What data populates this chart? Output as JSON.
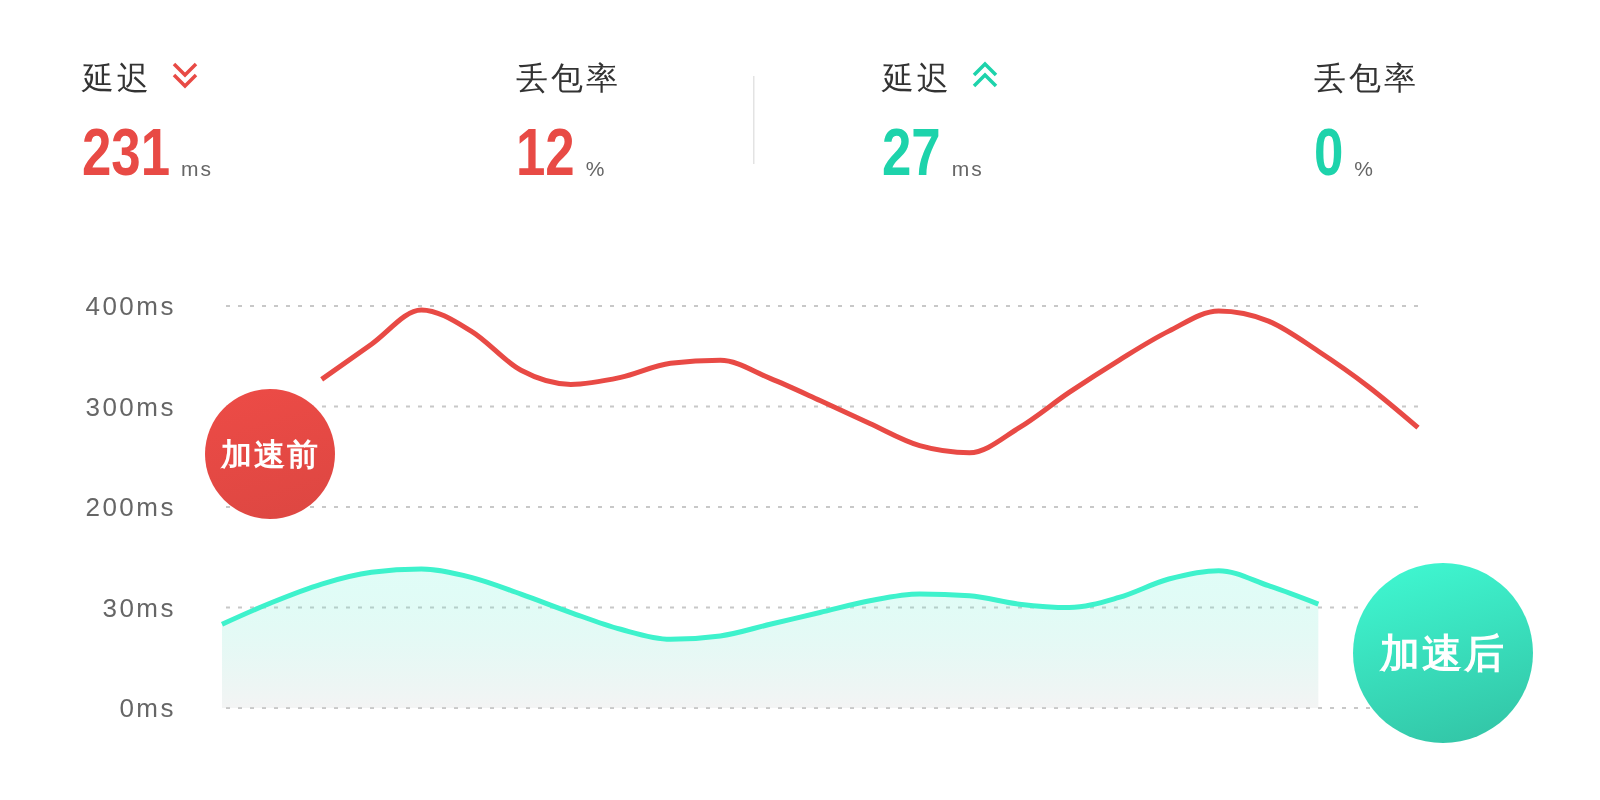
{
  "chart_data": [
    {
      "type": "other",
      "categories": [
        "延迟",
        "丢包率",
        "延迟",
        "丢包率"
      ],
      "values": [
        231,
        12,
        27,
        0
      ],
      "data_labels": true,
      "colors": [
        "#e84a45",
        "#e84a45",
        "#1dd3ab",
        "#1dd3ab"
      ],
      "annotations": [
        "ms",
        "%",
        "ms",
        "%"
      ]
    },
    {
      "type": "line",
      "categories": [
        null,
        null,
        null,
        null,
        null,
        null,
        null,
        null,
        null,
        null,
        null,
        null,
        null,
        null,
        null,
        null,
        null,
        null,
        null,
        null,
        null,
        null,
        null,
        null,
        null
      ],
      "series": [
        {
          "name": "加速前",
          "color": "#e84a45",
          "values": [
            null,
            null,
            327,
            362,
            396,
            375,
            336,
            322,
            329,
            343,
            346,
            328,
            306,
            283,
            261,
            254,
            279,
            314,
            346,
            375,
            395,
            385,
            355,
            320,
            279
          ]
        },
        {
          "name": "加速后",
          "type": "area",
          "axis": "y2",
          "color": "#3ef2cc",
          "values": [
            25,
            31.5,
            37,
            40.5,
            41.5,
            39,
            34,
            28.5,
            23.5,
            20.5,
            21.5,
            25,
            28.5,
            32,
            34,
            33.5,
            31,
            30,
            33,
            38.5,
            41,
            36.5,
            31,
            null,
            null
          ]
        }
      ],
      "ylim": [
        0,
        400
      ],
      "yticks": [
        {
          "value": 200,
          "label": "200ms"
        },
        {
          "value": 300,
          "label": "300ms"
        },
        {
          "value": 400,
          "label": "400ms"
        }
      ],
      "y2lim": [
        0,
        120
      ],
      "y2ticks": [
        {
          "value": 0,
          "label": "0ms"
        },
        {
          "value": 30,
          "label": "30ms"
        }
      ],
      "grid": true
    }
  ]
}
